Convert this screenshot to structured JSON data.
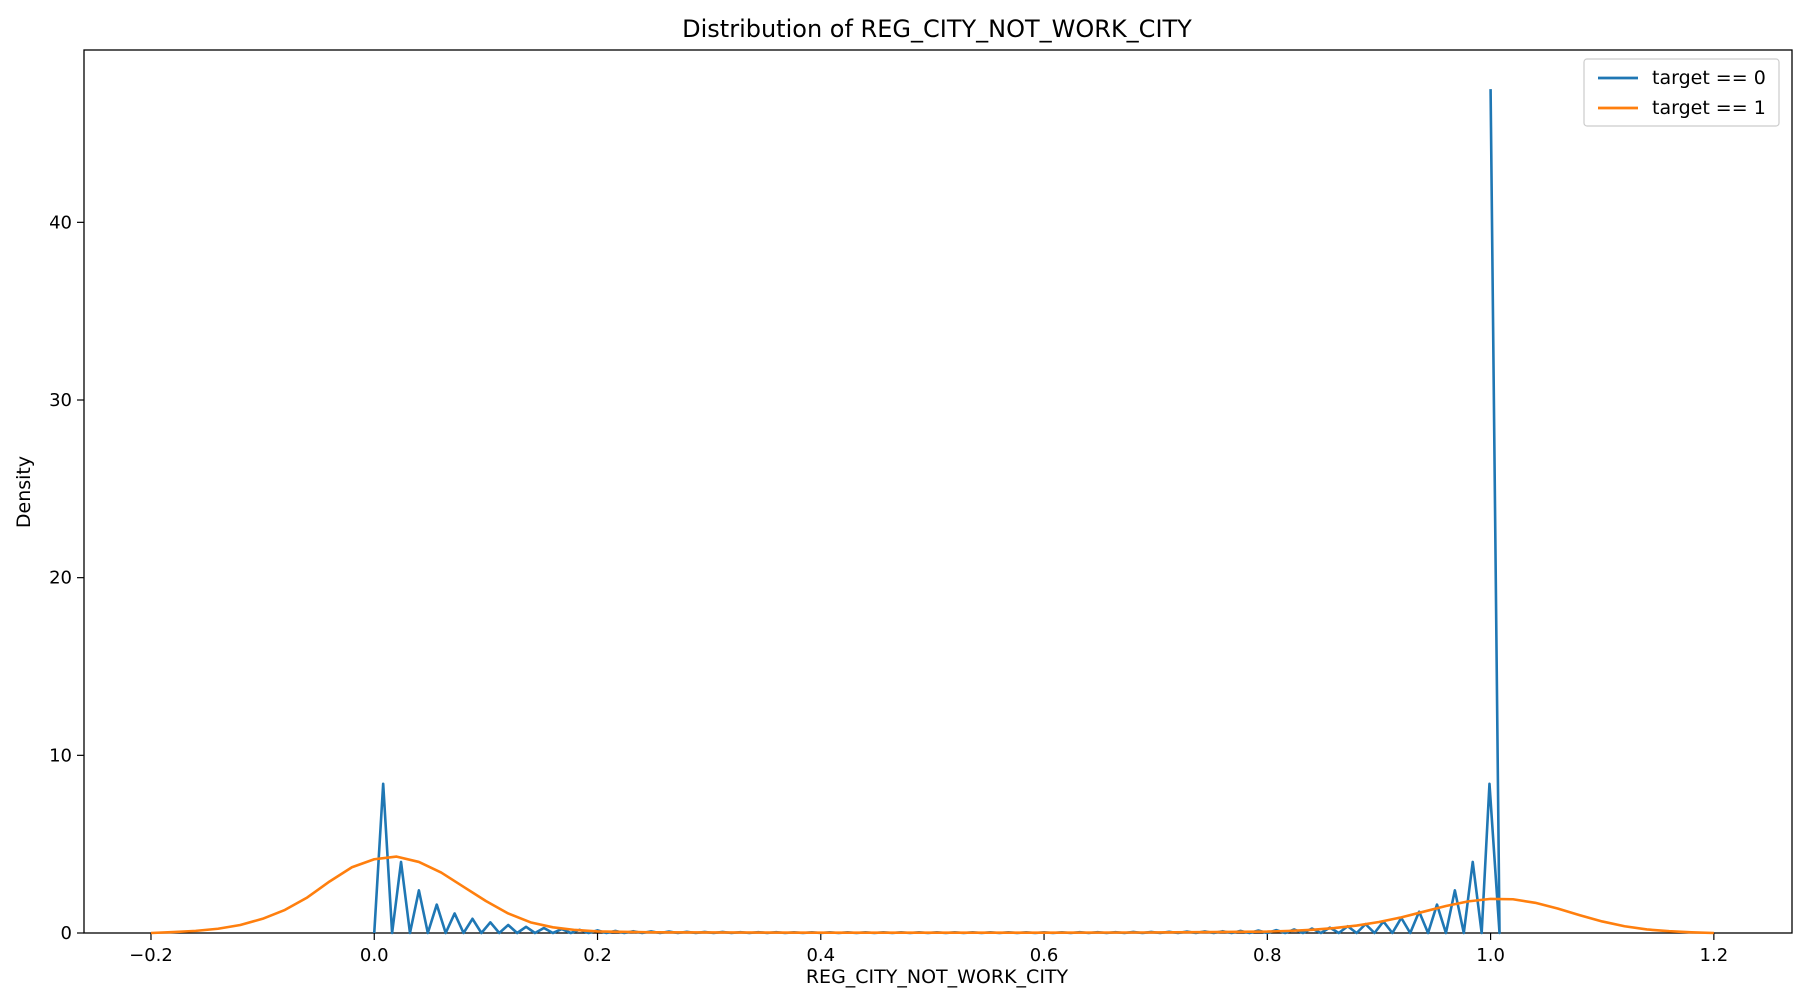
{
  "chart_data": {
    "type": "line",
    "title": "Distribution of REG_CITY_NOT_WORK_CITY",
    "xlabel": "REG_CITY_NOT_WORK_CITY",
    "ylabel": "Density",
    "xlim": [
      -0.26,
      1.27
    ],
    "ylim": [
      0,
      49.7
    ],
    "xticks": [
      -0.2,
      0.0,
      0.2,
      0.4,
      0.6,
      0.8,
      1.0,
      1.2
    ],
    "xtick_labels": [
      "−0.2",
      "0.0",
      "0.2",
      "0.4",
      "0.6",
      "0.8",
      "1.0",
      "1.2"
    ],
    "yticks": [
      0,
      10,
      20,
      30,
      40
    ],
    "ytick_labels": [
      "0",
      "10",
      "20",
      "30",
      "40"
    ],
    "grid": false,
    "legend_position": "top-right",
    "series": [
      {
        "name": "target == 0",
        "color": "#1f77b4",
        "points": [
          [
            0.0,
            0.0
          ],
          [
            0.008,
            8.4
          ],
          [
            0.016,
            0.0
          ],
          [
            0.024,
            4.0
          ],
          [
            0.032,
            0.0
          ],
          [
            0.04,
            2.4
          ],
          [
            0.048,
            0.0
          ],
          [
            0.056,
            1.6
          ],
          [
            0.064,
            0.0
          ],
          [
            0.072,
            1.1
          ],
          [
            0.08,
            0.0
          ],
          [
            0.088,
            0.8
          ],
          [
            0.096,
            0.0
          ],
          [
            0.104,
            0.6
          ],
          [
            0.112,
            0.0
          ],
          [
            0.12,
            0.45
          ],
          [
            0.128,
            0.0
          ],
          [
            0.136,
            0.35
          ],
          [
            0.144,
            0.0
          ],
          [
            0.152,
            0.28
          ],
          [
            0.16,
            0.0
          ],
          [
            0.168,
            0.22
          ],
          [
            0.176,
            0.0
          ],
          [
            0.184,
            0.18
          ],
          [
            0.192,
            0.0
          ],
          [
            0.2,
            0.15
          ],
          [
            0.208,
            0.0
          ],
          [
            0.216,
            0.12
          ],
          [
            0.224,
            0.0
          ],
          [
            0.232,
            0.1
          ],
          [
            0.24,
            0.0
          ],
          [
            0.248,
            0.09
          ],
          [
            0.256,
            0.0
          ],
          [
            0.264,
            0.08
          ],
          [
            0.272,
            0.0
          ],
          [
            0.28,
            0.07
          ],
          [
            0.288,
            0.0
          ],
          [
            0.296,
            0.06
          ],
          [
            0.304,
            0.0
          ],
          [
            0.312,
            0.06
          ],
          [
            0.32,
            0.0
          ],
          [
            0.328,
            0.05
          ],
          [
            0.336,
            0.0
          ],
          [
            0.344,
            0.05
          ],
          [
            0.352,
            0.0
          ],
          [
            0.36,
            0.05
          ],
          [
            0.368,
            0.0
          ],
          [
            0.376,
            0.04
          ],
          [
            0.384,
            0.0
          ],
          [
            0.392,
            0.04
          ],
          [
            0.4,
            0.0
          ],
          [
            0.408,
            0.04
          ],
          [
            0.416,
            0.0
          ],
          [
            0.424,
            0.04
          ],
          [
            0.432,
            0.0
          ],
          [
            0.44,
            0.04
          ],
          [
            0.448,
            0.0
          ],
          [
            0.456,
            0.04
          ],
          [
            0.464,
            0.0
          ],
          [
            0.472,
            0.04
          ],
          [
            0.48,
            0.0
          ],
          [
            0.488,
            0.04
          ],
          [
            0.496,
            0.0
          ],
          [
            0.504,
            0.04
          ],
          [
            0.512,
            0.0
          ],
          [
            0.52,
            0.04
          ],
          [
            0.528,
            0.0
          ],
          [
            0.536,
            0.04
          ],
          [
            0.544,
            0.0
          ],
          [
            0.552,
            0.04
          ],
          [
            0.56,
            0.0
          ],
          [
            0.568,
            0.04
          ],
          [
            0.576,
            0.0
          ],
          [
            0.584,
            0.04
          ],
          [
            0.592,
            0.0
          ],
          [
            0.6,
            0.04
          ],
          [
            0.608,
            0.0
          ],
          [
            0.616,
            0.04
          ],
          [
            0.624,
            0.0
          ],
          [
            0.632,
            0.05
          ],
          [
            0.64,
            0.0
          ],
          [
            0.648,
            0.05
          ],
          [
            0.656,
            0.0
          ],
          [
            0.664,
            0.05
          ],
          [
            0.672,
            0.0
          ],
          [
            0.68,
            0.06
          ],
          [
            0.688,
            0.0
          ],
          [
            0.696,
            0.06
          ],
          [
            0.704,
            0.0
          ],
          [
            0.712,
            0.07
          ],
          [
            0.72,
            0.0
          ],
          [
            0.728,
            0.08
          ],
          [
            0.736,
            0.0
          ],
          [
            0.744,
            0.09
          ],
          [
            0.752,
            0.0
          ],
          [
            0.76,
            0.1
          ],
          [
            0.768,
            0.0
          ],
          [
            0.776,
            0.12
          ],
          [
            0.784,
            0.0
          ],
          [
            0.792,
            0.14
          ],
          [
            0.8,
            0.0
          ],
          [
            0.808,
            0.16
          ],
          [
            0.816,
            0.0
          ],
          [
            0.824,
            0.2
          ],
          [
            0.832,
            0.0
          ],
          [
            0.84,
            0.25
          ],
          [
            0.848,
            0.0
          ],
          [
            0.856,
            0.3
          ],
          [
            0.864,
            0.0
          ],
          [
            0.872,
            0.38
          ],
          [
            0.88,
            0.0
          ],
          [
            0.888,
            0.5
          ],
          [
            0.896,
            0.0
          ],
          [
            0.904,
            0.65
          ],
          [
            0.912,
            0.0
          ],
          [
            0.92,
            0.85
          ],
          [
            0.928,
            0.0
          ],
          [
            0.936,
            1.2
          ],
          [
            0.944,
            0.0
          ],
          [
            0.952,
            1.6
          ],
          [
            0.96,
            0.0
          ],
          [
            0.968,
            2.4
          ],
          [
            0.976,
            0.0
          ],
          [
            0.984,
            4.0
          ],
          [
            0.992,
            0.0
          ],
          [
            0.999,
            8.4
          ],
          [
            1.008,
            0.0
          ],
          [
            1.0,
            47.5
          ]
        ]
      },
      {
        "name": "target == 1",
        "color": "#ff7f0e",
        "points": [
          [
            -0.2,
            0.0
          ],
          [
            -0.18,
            0.05
          ],
          [
            -0.16,
            0.12
          ],
          [
            -0.14,
            0.24
          ],
          [
            -0.12,
            0.45
          ],
          [
            -0.1,
            0.8
          ],
          [
            -0.08,
            1.3
          ],
          [
            -0.06,
            2.0
          ],
          [
            -0.04,
            2.9
          ],
          [
            -0.02,
            3.7
          ],
          [
            0.0,
            4.15
          ],
          [
            0.02,
            4.3
          ],
          [
            0.04,
            4.0
          ],
          [
            0.06,
            3.4
          ],
          [
            0.08,
            2.6
          ],
          [
            0.1,
            1.8
          ],
          [
            0.12,
            1.1
          ],
          [
            0.14,
            0.6
          ],
          [
            0.16,
            0.32
          ],
          [
            0.18,
            0.17
          ],
          [
            0.2,
            0.09
          ],
          [
            0.25,
            0.04
          ],
          [
            0.3,
            0.03
          ],
          [
            0.4,
            0.02
          ],
          [
            0.5,
            0.02
          ],
          [
            0.6,
            0.02
          ],
          [
            0.7,
            0.03
          ],
          [
            0.75,
            0.05
          ],
          [
            0.8,
            0.08
          ],
          [
            0.82,
            0.12
          ],
          [
            0.84,
            0.18
          ],
          [
            0.86,
            0.28
          ],
          [
            0.88,
            0.42
          ],
          [
            0.9,
            0.62
          ],
          [
            0.92,
            0.88
          ],
          [
            0.94,
            1.2
          ],
          [
            0.96,
            1.52
          ],
          [
            0.98,
            1.78
          ],
          [
            1.0,
            1.92
          ],
          [
            1.02,
            1.9
          ],
          [
            1.04,
            1.7
          ],
          [
            1.06,
            1.38
          ],
          [
            1.08,
            1.0
          ],
          [
            1.1,
            0.65
          ],
          [
            1.12,
            0.38
          ],
          [
            1.14,
            0.2
          ],
          [
            1.16,
            0.1
          ],
          [
            1.18,
            0.04
          ],
          [
            1.2,
            0.0
          ]
        ]
      }
    ]
  }
}
